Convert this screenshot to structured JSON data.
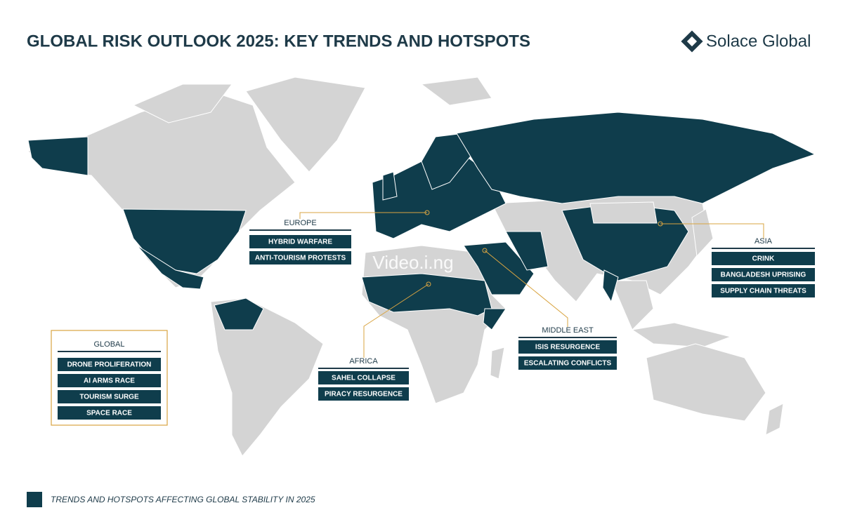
{
  "header": {
    "title": "GLOBAL RISK OUTLOOK 2025: KEY TRENDS AND HOTSPOTS",
    "brand": "Solace Global"
  },
  "watermark": "Video.i.ng",
  "regions": [
    {
      "name": "EUROPE",
      "items": [
        "HYBRID WARFARE",
        "ANTI-TOURISM PROTESTS"
      ]
    },
    {
      "name": "ASIA",
      "items": [
        "CRINK",
        "BANGLADESH UPRISING",
        "SUPPLY CHAIN THREATS"
      ]
    },
    {
      "name": "MIDDLE EAST",
      "items": [
        "ISIS RESURGENCE",
        "ESCALATING CONFLICTS"
      ]
    },
    {
      "name": "AFRICA",
      "items": [
        "SAHEL COLLAPSE",
        "PIRACY RESURGENCE"
      ]
    },
    {
      "name": "GLOBAL",
      "items": [
        "DRONE PROLIFERATION",
        "AI ARMS RACE",
        "TOURISM SURGE",
        "SPACE RACE"
      ]
    }
  ],
  "legend": {
    "label": "TRENDS AND HOTSPOTS AFFECTING GLOBAL STABILITY IN 2025"
  }
}
